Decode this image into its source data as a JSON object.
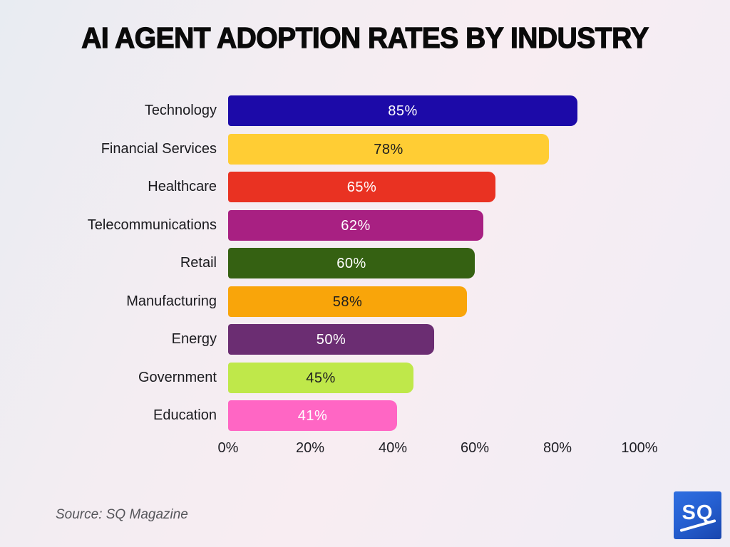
{
  "title": "AI AGENT ADOPTION RATES BY INDUSTRY",
  "source_text": "Source: SQ Magazine",
  "logo": {
    "text": "SQ"
  },
  "chart_data": {
    "type": "bar",
    "orientation": "horizontal",
    "title": "AI AGENT ADOPTION RATES BY INDUSTRY",
    "categories": [
      "Technology",
      "Financial Services",
      "Healthcare",
      "Telecommunications",
      "Retail",
      "Manufacturing",
      "Energy",
      "Government",
      "Education"
    ],
    "values": [
      85,
      78,
      65,
      62,
      60,
      58,
      50,
      45,
      41
    ],
    "value_labels": [
      "85%",
      "78%",
      "65%",
      "62%",
      "60%",
      "58%",
      "50%",
      "45%",
      "41%"
    ],
    "bar_colors": [
      "#1C0AA8",
      "#FFCD34",
      "#E93222",
      "#A82082",
      "#356112",
      "#F9A50A",
      "#6B2D72",
      "#BFE84A",
      "#FF66C4"
    ],
    "value_text_colors": [
      "#ffffff",
      "#1d1d1f",
      "#ffffff",
      "#ffffff",
      "#ffffff",
      "#1d1d1f",
      "#ffffff",
      "#1d1d1f",
      "#ffffff"
    ],
    "x_ticks": [
      0,
      20,
      40,
      60,
      80,
      100
    ],
    "x_tick_labels": [
      "0%",
      "20%",
      "40%",
      "60%",
      "80%",
      "100%"
    ],
    "xlim": [
      0,
      100
    ],
    "xlabel": "",
    "ylabel": "",
    "grid": false,
    "legend": false,
    "source": "Source: SQ Magazine"
  },
  "layout_colors": {
    "background_top_left": "#e8ecf2",
    "background_pink": "#f8edf2",
    "background_bottom_right": "#efedf5",
    "title_color": "#0a0a0a",
    "label_color": "#1b1b1f",
    "source_color": "#55555a",
    "logo_blue_light": "#2f6fe0",
    "logo_blue_dark": "#1a46ae"
  }
}
